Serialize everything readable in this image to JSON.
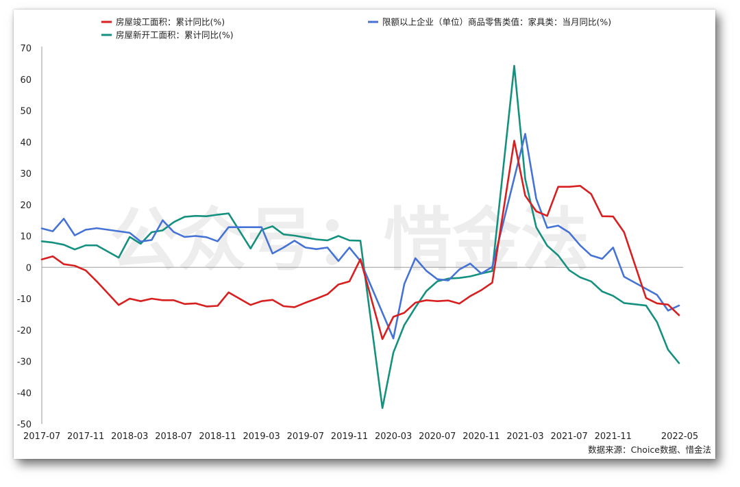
{
  "watermark": "公众号：惜金法",
  "source": "数据来源：Choice数据、惜金法",
  "colors": {
    "red": "#d81e1e",
    "blue": "#4472d6",
    "teal": "#14907f",
    "axis": "#9a9a9a"
  },
  "chart_data": {
    "type": "line",
    "title": "",
    "xlabel": "",
    "ylabel": "",
    "ylim": [
      -50,
      70
    ],
    "yticks": [
      70,
      60,
      50,
      40,
      30,
      20,
      10,
      0,
      -10,
      -20,
      -30,
      -40,
      -50
    ],
    "grid": false,
    "legend_position": "top",
    "x_start": "2017-07",
    "x_end": "2022-05",
    "x_tick_labels": [
      "2017-07",
      "2017-11",
      "2018-03",
      "2018-07",
      "2018-11",
      "2019-03",
      "2019-07",
      "2019-11",
      "2020-03",
      "2020-07",
      "2020-11",
      "2021-03",
      "2021-07",
      "2021-11",
      "2022-05"
    ],
    "series": [
      {
        "name": "房屋竣工面积：累计同比(%)",
        "color": "red",
        "points": [
          [
            "2017-07",
            2.5
          ],
          [
            "2017-08",
            3.5
          ],
          [
            "2017-09",
            1
          ],
          [
            "2017-10",
            0.5
          ],
          [
            "2017-11",
            -1
          ],
          [
            "2017-12",
            -4.5
          ],
          [
            "2018-02",
            -12
          ],
          [
            "2018-03",
            -10
          ],
          [
            "2018-04",
            -10.8
          ],
          [
            "2018-05",
            -10
          ],
          [
            "2018-06",
            -10.5
          ],
          [
            "2018-07",
            -10.5
          ],
          [
            "2018-08",
            -11.7
          ],
          [
            "2018-09",
            -11.5
          ],
          [
            "2018-10",
            -12.5
          ],
          [
            "2018-11",
            -12.3
          ],
          [
            "2018-12",
            -8
          ],
          [
            "2019-02",
            -12
          ],
          [
            "2019-03",
            -10.8
          ],
          [
            "2019-04",
            -10.4
          ],
          [
            "2019-05",
            -12.4
          ],
          [
            "2019-06",
            -12.7
          ],
          [
            "2019-07",
            -11.3
          ],
          [
            "2019-08",
            -10
          ],
          [
            "2019-09",
            -8.6
          ],
          [
            "2019-10",
            -5.5
          ],
          [
            "2019-11",
            -4.5
          ],
          [
            "2019-12",
            2.6
          ],
          [
            "2020-02",
            -22.9
          ],
          [
            "2020-03",
            -15.8
          ],
          [
            "2020-04",
            -14.5
          ],
          [
            "2020-05",
            -11.3
          ],
          [
            "2020-06",
            -10.5
          ],
          [
            "2020-07",
            -10.8
          ],
          [
            "2020-08",
            -10.6
          ],
          [
            "2020-09",
            -11.6
          ],
          [
            "2020-10",
            -9.2
          ],
          [
            "2020-11",
            -7.3
          ],
          [
            "2020-12",
            -4.9
          ],
          [
            "2021-02",
            40.4
          ],
          [
            "2021-03",
            22.9
          ],
          [
            "2021-04",
            17.9
          ],
          [
            "2021-05",
            16.4
          ],
          [
            "2021-06",
            25.7
          ],
          [
            "2021-07",
            25.7
          ],
          [
            "2021-08",
            26
          ],
          [
            "2021-09",
            23.4
          ],
          [
            "2021-10",
            16.3
          ],
          [
            "2021-11",
            16.2
          ],
          [
            "2021-12",
            11.2
          ],
          [
            "2022-02",
            -9.8
          ],
          [
            "2022-03",
            -11.5
          ],
          [
            "2022-04",
            -11.9
          ],
          [
            "2022-05",
            -15.3
          ]
        ]
      },
      {
        "name": "限额以上企业（单位）商品零售类值：家具类：当月同比(%)",
        "color": "blue",
        "points": [
          [
            "2017-07",
            12.4
          ],
          [
            "2017-08",
            11.5
          ],
          [
            "2017-09",
            15.5
          ],
          [
            "2017-10",
            10.2
          ],
          [
            "2017-11",
            12
          ],
          [
            "2017-12",
            12.5
          ],
          [
            "2018-03",
            11
          ],
          [
            "2018-04",
            8.2
          ],
          [
            "2018-05",
            8.7
          ],
          [
            "2018-06",
            15
          ],
          [
            "2018-07",
            11.3
          ],
          [
            "2018-08",
            9.7
          ],
          [
            "2018-09",
            10
          ],
          [
            "2018-10",
            9.6
          ],
          [
            "2018-11",
            8.3
          ],
          [
            "2018-12",
            12.8
          ],
          [
            "2019-03",
            12.8
          ],
          [
            "2019-04",
            4.4
          ],
          [
            "2019-05",
            6.3
          ],
          [
            "2019-06",
            8.5
          ],
          [
            "2019-07",
            6.3
          ],
          [
            "2019-08",
            5.8
          ],
          [
            "2019-09",
            6.3
          ],
          [
            "2019-10",
            2
          ],
          [
            "2019-11",
            6.3
          ],
          [
            "2019-12",
            2
          ],
          [
            "2020-03",
            -22.7
          ],
          [
            "2020-04",
            -5.3
          ],
          [
            "2020-05",
            2.9
          ],
          [
            "2020-06",
            -1.1
          ],
          [
            "2020-07",
            -3.8
          ],
          [
            "2020-08",
            -4.2
          ],
          [
            "2020-09",
            -0.7
          ],
          [
            "2020-10",
            1.2
          ],
          [
            "2020-11",
            -2
          ],
          [
            "2020-12",
            0.1
          ],
          [
            "2021-03",
            42.6
          ],
          [
            "2021-04",
            21.9
          ],
          [
            "2021-05",
            12.6
          ],
          [
            "2021-06",
            13.3
          ],
          [
            "2021-07",
            11.1
          ],
          [
            "2021-08",
            7
          ],
          [
            "2021-09",
            3.8
          ],
          [
            "2021-10",
            2.7
          ],
          [
            "2021-11",
            6.3
          ],
          [
            "2021-12",
            -3
          ],
          [
            "2022-03",
            -8.8
          ],
          [
            "2022-04",
            -13.8
          ],
          [
            "2022-05",
            -12.2
          ]
        ]
      },
      {
        "name": "房屋新开工面积：累计同比(%)",
        "color": "teal",
        "points": [
          [
            "2017-07",
            8.3
          ],
          [
            "2017-08",
            7.9
          ],
          [
            "2017-09",
            7.2
          ],
          [
            "2017-10",
            5.7
          ],
          [
            "2017-11",
            7
          ],
          [
            "2017-12",
            7
          ],
          [
            "2018-02",
            3.1
          ],
          [
            "2018-03",
            9.7
          ],
          [
            "2018-04",
            7.5
          ],
          [
            "2018-05",
            11.2
          ],
          [
            "2018-06",
            11.8
          ],
          [
            "2018-07",
            14.4
          ],
          [
            "2018-08",
            16.1
          ],
          [
            "2018-09",
            16.4
          ],
          [
            "2018-10",
            16.3
          ],
          [
            "2018-11",
            16.8
          ],
          [
            "2018-12",
            17.2
          ],
          [
            "2019-02",
            6
          ],
          [
            "2019-03",
            11.9
          ],
          [
            "2019-04",
            13.1
          ],
          [
            "2019-05",
            10.5
          ],
          [
            "2019-06",
            10.1
          ],
          [
            "2019-07",
            9.5
          ],
          [
            "2019-08",
            8.9
          ],
          [
            "2019-09",
            8.6
          ],
          [
            "2019-10",
            10
          ],
          [
            "2019-11",
            8.6
          ],
          [
            "2019-12",
            8.5
          ],
          [
            "2020-02",
            -44.9
          ],
          [
            "2020-03",
            -27.2
          ],
          [
            "2020-04",
            -18.4
          ],
          [
            "2020-05",
            -12.8
          ],
          [
            "2020-06",
            -7.6
          ],
          [
            "2020-07",
            -4.5
          ],
          [
            "2020-08",
            -3.6
          ],
          [
            "2020-09",
            -3.4
          ],
          [
            "2020-10",
            -2.9
          ],
          [
            "2020-11",
            -2
          ],
          [
            "2020-12",
            -1.2
          ],
          [
            "2021-02",
            64.3
          ],
          [
            "2021-03",
            28.2
          ],
          [
            "2021-04",
            12.8
          ],
          [
            "2021-05",
            6.9
          ],
          [
            "2021-06",
            3.8
          ],
          [
            "2021-07",
            -0.9
          ],
          [
            "2021-08",
            -3.2
          ],
          [
            "2021-09",
            -4.5
          ],
          [
            "2021-10",
            -7.7
          ],
          [
            "2021-11",
            -9.1
          ],
          [
            "2021-12",
            -11.4
          ],
          [
            "2022-02",
            -12.2
          ],
          [
            "2022-03",
            -17.5
          ],
          [
            "2022-04",
            -26.3
          ],
          [
            "2022-05",
            -30.6
          ]
        ]
      }
    ]
  }
}
